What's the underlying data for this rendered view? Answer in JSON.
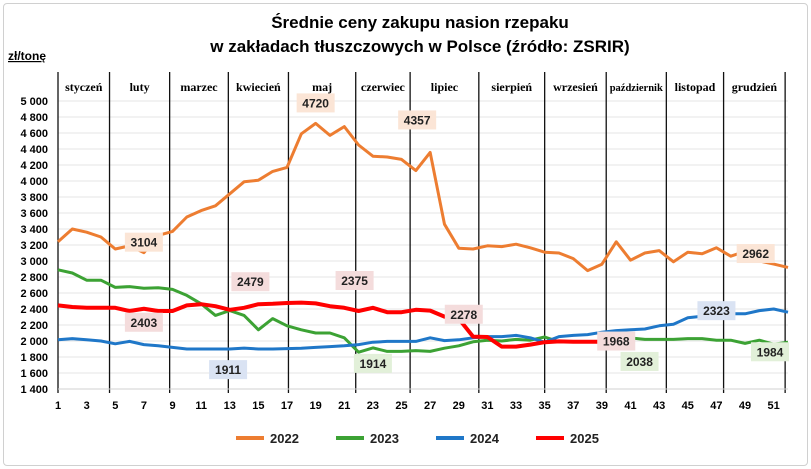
{
  "chart_data": {
    "type": "line",
    "title_line1": "Średnie ceny zakupu nasion rzepaku",
    "title_line2": "w zakładach tłuszczowych w Polsce  (źródło: ZSRIR)",
    "ylabel": "zł/tonę",
    "xlabel": "",
    "ylim": [
      1400,
      5000
    ],
    "yticks": [
      "5 000",
      "4 800",
      "4 600",
      "4 400",
      "4 200",
      "4 000",
      "3 800",
      "3 600",
      "3 400",
      "3 200",
      "3 000",
      "2 800",
      "2 600",
      "2 400",
      "2 200",
      "2 000",
      "1 800",
      "1 600",
      "1 400"
    ],
    "ytick_values": [
      5000,
      4800,
      4600,
      4400,
      4200,
      4000,
      3800,
      3600,
      3400,
      3200,
      3000,
      2800,
      2600,
      2400,
      2200,
      2000,
      1800,
      1600,
      1400
    ],
    "xlim": [
      1,
      52
    ],
    "xticks": [
      "1",
      "3",
      "5",
      "7",
      "9",
      "11",
      "13",
      "15",
      "17",
      "19",
      "21",
      "23",
      "25",
      "27",
      "29",
      "31",
      "33",
      "35",
      "37",
      "39",
      "41",
      "43",
      "45",
      "47",
      "49",
      "51"
    ],
    "grid": true,
    "legend_position": "bottom",
    "months": [
      "styczeń",
      "luty",
      "marzec",
      "kwiecień",
      "maj",
      "czerwiec",
      "lipiec",
      "sierpień",
      "wrzesień",
      "październik",
      "listopad",
      "grudzień"
    ],
    "month_boundaries_week": [
      1,
      4.6,
      8.8,
      12.9,
      17.1,
      21.8,
      25.6,
      30.4,
      35,
      39.3,
      43.5,
      47.5,
      51.8
    ],
    "series": [
      {
        "name": "2022",
        "color": "#ed7d31",
        "values": [
          3240,
          3400,
          3360,
          3300,
          3150,
          3190,
          3104,
          3320,
          3370,
          3550,
          3630,
          3690,
          3840,
          3990,
          4010,
          4120,
          4170,
          4590,
          4720,
          4570,
          4680,
          4450,
          4310,
          4300,
          4270,
          4130,
          4357,
          3460,
          3160,
          3150,
          3190,
          3180,
          3210,
          3165,
          3110,
          3100,
          3030,
          2880,
          2960,
          3240,
          3010,
          3100,
          3130,
          2990,
          3110,
          3090,
          3165,
          3060,
          3120,
          3000,
          2962,
          2920
        ]
      },
      {
        "name": "2023",
        "color": "#3ca234",
        "values": [
          2890,
          2850,
          2760,
          2760,
          2670,
          2680,
          2660,
          2665,
          2645,
          2570,
          2465,
          2320,
          2380,
          2320,
          2140,
          2280,
          2190,
          2140,
          2100,
          2100,
          2040,
          1860,
          1914,
          1870,
          1870,
          1880,
          1870,
          1910,
          1940,
          1990,
          2010,
          2000,
          2020,
          2010,
          2050,
          1990,
          1990,
          1990,
          1990,
          2020,
          2038,
          2020,
          2020,
          2020,
          2030,
          2030,
          2010,
          2010,
          1970,
          2010,
          1960,
          1984
        ]
      },
      {
        "name": "2024",
        "color": "#1f77c8",
        "values": [
          2015,
          2030,
          2015,
          2000,
          1965,
          1995,
          1955,
          1940,
          1920,
          1900,
          1900,
          1900,
          1900,
          1911,
          1900,
          1900,
          1905,
          1910,
          1920,
          1930,
          1940,
          1955,
          1985,
          1995,
          1995,
          1995,
          2040,
          2005,
          2015,
          2040,
          2055,
          2055,
          2070,
          2040,
          1985,
          2055,
          2070,
          2080,
          2110,
          2130,
          2140,
          2150,
          2190,
          2210,
          2290,
          2310,
          2323,
          2340,
          2340,
          2380,
          2400,
          2360
        ]
      },
      {
        "name": "2025",
        "color": "#ff0000",
        "values": [
          2445,
          2425,
          2415,
          2415,
          2415,
          2375,
          2403,
          2375,
          2375,
          2445,
          2460,
          2435,
          2390,
          2415,
          2460,
          2465,
          2475,
          2479,
          2470,
          2435,
          2415,
          2375,
          2415,
          2360,
          2360,
          2390,
          2380,
          2305,
          2278,
          2055,
          2050,
          1930,
          1930,
          1955,
          1985,
          1995,
          1990,
          1990,
          1990,
          1968
        ]
      }
    ],
    "annotations": [
      {
        "series": "2022",
        "week": 7,
        "text": "3104",
        "bg": "#fbe5d6"
      },
      {
        "series": "2022",
        "week": 19,
        "text": "4720",
        "bg": "#fbe5d6"
      },
      {
        "series": "2022",
        "week": 27,
        "text": "4357",
        "bg": "#fbe5d6"
      },
      {
        "series": "2022",
        "week": 51,
        "text": "2962",
        "bg": "#fbe5d6"
      },
      {
        "series": "2025",
        "week": 15,
        "text": "2479",
        "bg": "#f4dcdc"
      },
      {
        "series": "2025",
        "week": 7,
        "text": "2403",
        "bg": "#f4dcdc"
      },
      {
        "series": "2025",
        "week": 22,
        "text": "2375",
        "bg": "#f4dcdc"
      },
      {
        "series": "2025",
        "week": 29,
        "text": "2278",
        "bg": "#f4dcdc"
      },
      {
        "series": "2025",
        "week": 40,
        "text": "1968",
        "bg": "#f4dcdc"
      },
      {
        "series": "2024",
        "week": 14,
        "text": "1911",
        "bg": "#dae3f3"
      },
      {
        "series": "2024",
        "week": 47,
        "text": "2323",
        "bg": "#dae3f3"
      },
      {
        "series": "2023",
        "week": 23,
        "text": "1914",
        "bg": "#e2f0d9"
      },
      {
        "series": "2023",
        "week": 41,
        "text": "2038",
        "bg": "#e2f0d9"
      },
      {
        "series": "2023",
        "week": 52,
        "text": "1984",
        "bg": "#e2f0d9"
      }
    ]
  }
}
